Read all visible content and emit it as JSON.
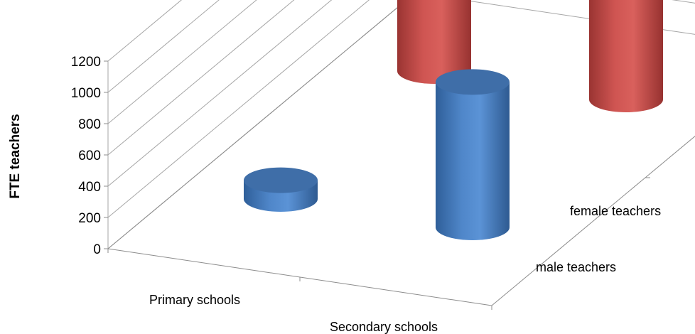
{
  "chart_data": {
    "type": "bar",
    "style": "3d-cylinder",
    "title": "",
    "ylabel": "FTE teachers",
    "ylim": [
      0,
      1200
    ],
    "yticks": [
      0,
      200,
      400,
      600,
      800,
      1000,
      1200
    ],
    "categories": [
      "Primary schools",
      "Secondary schools"
    ],
    "series": [
      {
        "name": "male teachers",
        "values": [
          120,
          930
        ],
        "color": "#4f81bd"
      },
      {
        "name": "female teachers",
        "values": [
          580,
          1020
        ],
        "color": "#c0504d"
      }
    ],
    "grid": true
  }
}
